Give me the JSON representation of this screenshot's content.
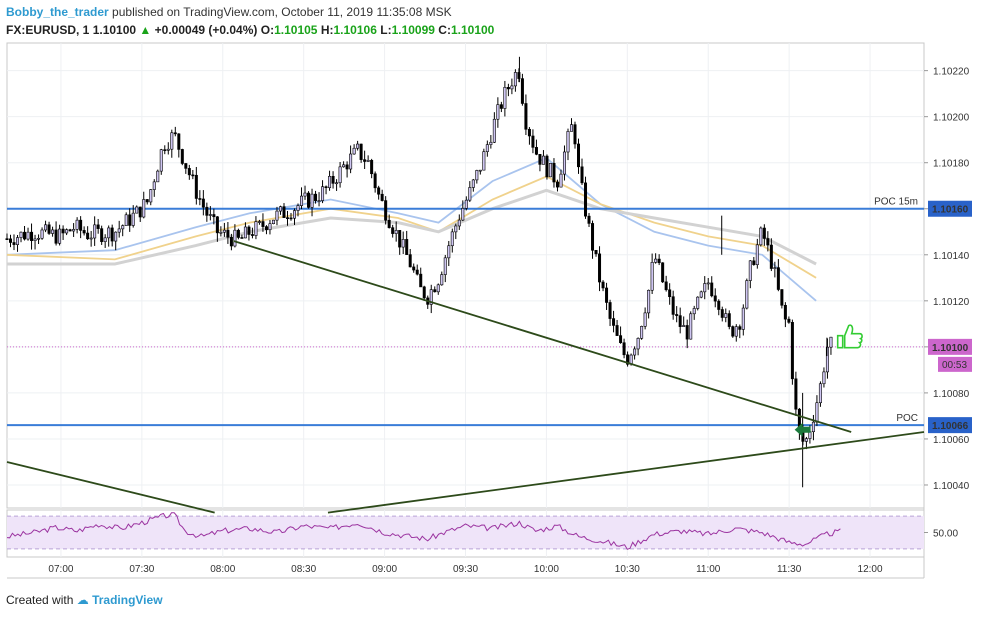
{
  "header": {
    "author": "Bobby_the_trader",
    "published_text": "published on TradingView.com, October 11, 2019 11:35:08 MSK",
    "symbol": "FX:EURUSD, 1",
    "last": "1.10100",
    "change": "+0.00049 (+0.04%)",
    "ohlc": [
      {
        "label": "O:",
        "value": "1.10105"
      },
      {
        "label": "H:",
        "value": "1.10106"
      },
      {
        "label": "L:",
        "value": "1.10099"
      },
      {
        "label": "C:",
        "value": "1.10100"
      }
    ]
  },
  "footer": {
    "created_with": "Created with",
    "brand": "TradingView"
  },
  "colors": {
    "candle": "#000000",
    "candle_body": "#cfc6f2",
    "hline": "#3a7dd8",
    "trendline": "#2d4a1a",
    "ma_fast": "#a9c4ee",
    "ma_mid": "#f0d28c",
    "ma_slow": "#d2d2d2",
    "price_tag": "#cc66cc",
    "hline_tag": "#2962c9",
    "rsi": "#9b33a0",
    "rsi_band": "#efe4f9",
    "arrow": "#1b7a3c",
    "thumb": "#33cc33"
  },
  "chart_data": {
    "type": "candlestick",
    "symbol": "FX:EURUSD",
    "timeframe": "1",
    "y_ticks": [
      "1.10040",
      "1.10060",
      "1.10080",
      "1.10100",
      "1.10120",
      "1.10140",
      "1.10160",
      "1.10180",
      "1.10200",
      "1.10220"
    ],
    "ylim": [
      1.1003,
      1.10232
    ],
    "x_ticks": [
      "07:00",
      "07:30",
      "08:00",
      "08:30",
      "09:00",
      "09:30",
      "10:00",
      "10:30",
      "11:00",
      "11:30",
      "12:00"
    ],
    "xlim_minutes": [
      400,
      740
    ],
    "close_path": [
      [
        400,
        1.10147
      ],
      [
        410,
        1.1015
      ],
      [
        420,
        1.10148
      ],
      [
        425,
        1.10152
      ],
      [
        430,
        1.10149
      ],
      [
        440,
        1.1015
      ],
      [
        448,
        1.10158
      ],
      [
        452,
        1.10163
      ],
      [
        458,
        1.10188
      ],
      [
        462,
        1.10192
      ],
      [
        466,
        1.1018
      ],
      [
        470,
        1.10168
      ],
      [
        474,
        1.10158
      ],
      [
        478,
        1.1015
      ],
      [
        482,
        1.10148
      ],
      [
        486,
        1.10146
      ],
      [
        490,
        1.1015
      ],
      [
        494,
        1.10152
      ],
      [
        498,
        1.10156
      ],
      [
        502,
        1.10158
      ],
      [
        506,
        1.1016
      ],
      [
        510,
        1.10163
      ],
      [
        514,
        1.10165
      ],
      [
        518,
        1.10168
      ],
      [
        522,
        1.10174
      ],
      [
        526,
        1.1018
      ],
      [
        530,
        1.10185
      ],
      [
        534,
        1.1018
      ],
      [
        538,
        1.10165
      ],
      [
        542,
        1.10155
      ],
      [
        546,
        1.10145
      ],
      [
        550,
        1.10135
      ],
      [
        553,
        1.10125
      ],
      [
        556,
        1.10122
      ],
      [
        560,
        1.1013
      ],
      [
        564,
        1.10145
      ],
      [
        568,
        1.10158
      ],
      [
        572,
        1.10168
      ],
      [
        576,
        1.1018
      ],
      [
        580,
        1.10195
      ],
      [
        584,
        1.10208
      ],
      [
        588,
        1.10218
      ],
      [
        590,
        1.1022
      ],
      [
        592,
        1.102
      ],
      [
        596,
        1.10185
      ],
      [
        600,
        1.10178
      ],
      [
        604,
        1.10172
      ],
      [
        608,
        1.1019
      ],
      [
        610,
        1.10198
      ],
      [
        612,
        1.10175
      ],
      [
        616,
        1.1015
      ],
      [
        620,
        1.10128
      ],
      [
        624,
        1.1011
      ],
      [
        628,
        1.10098
      ],
      [
        630,
        1.10095
      ],
      [
        634,
        1.10105
      ],
      [
        638,
        1.10125
      ],
      [
        640,
        1.1014
      ],
      [
        644,
        1.10125
      ],
      [
        648,
        1.10112
      ],
      [
        652,
        1.10106
      ],
      [
        656,
        1.10118
      ],
      [
        660,
        1.10128
      ],
      [
        664,
        1.1012
      ],
      [
        668,
        1.10106
      ],
      [
        672,
        1.10112
      ],
      [
        676,
        1.10136
      ],
      [
        680,
        1.1015
      ],
      [
        684,
        1.10135
      ],
      [
        688,
        1.10112
      ],
      [
        690,
        1.1011
      ],
      [
        692,
        1.10075
      ],
      [
        694,
        1.1006
      ],
      [
        696,
        1.10058
      ],
      [
        698,
        1.10066
      ],
      [
        700,
        1.10075
      ],
      [
        702,
        1.10085
      ],
      [
        704,
        1.101
      ],
      [
        706,
        1.10101
      ]
    ],
    "high_low": [
      [
        590,
        1.10226,
        1.10215
      ],
      [
        665,
        1.10157,
        1.1014
      ],
      [
        704,
        1.10104,
        1.10096
      ],
      [
        695,
        1.1008,
        1.10039
      ]
    ],
    "moving_averages": [
      {
        "color_key": "ma_fast",
        "points": [
          [
            400,
            1.1014
          ],
          [
            440,
            1.10142
          ],
          [
            470,
            1.10152
          ],
          [
            490,
            1.10158
          ],
          [
            520,
            1.10164
          ],
          [
            545,
            1.10158
          ],
          [
            560,
            1.10154
          ],
          [
            580,
            1.10172
          ],
          [
            600,
            1.10182
          ],
          [
            620,
            1.10162
          ],
          [
            640,
            1.1015
          ],
          [
            660,
            1.10144
          ],
          [
            680,
            1.1014
          ],
          [
            700,
            1.1012
          ]
        ]
      },
      {
        "color_key": "ma_mid",
        "points": [
          [
            400,
            1.1014
          ],
          [
            440,
            1.10138
          ],
          [
            470,
            1.10148
          ],
          [
            490,
            1.10154
          ],
          [
            520,
            1.1016
          ],
          [
            545,
            1.10156
          ],
          [
            560,
            1.1015
          ],
          [
            580,
            1.10164
          ],
          [
            600,
            1.10174
          ],
          [
            620,
            1.10162
          ],
          [
            640,
            1.10154
          ],
          [
            660,
            1.10148
          ],
          [
            680,
            1.10144
          ],
          [
            700,
            1.1013
          ]
        ]
      },
      {
        "color_key": "ma_slow",
        "points": [
          [
            400,
            1.10136
          ],
          [
            440,
            1.10136
          ],
          [
            470,
            1.10144
          ],
          [
            490,
            1.1015
          ],
          [
            520,
            1.10156
          ],
          [
            545,
            1.10154
          ],
          [
            560,
            1.1015
          ],
          [
            580,
            1.1016
          ],
          [
            600,
            1.10168
          ],
          [
            620,
            1.1016
          ],
          [
            640,
            1.10156
          ],
          [
            660,
            1.10152
          ],
          [
            680,
            1.10148
          ],
          [
            700,
            1.10136
          ]
        ]
      }
    ],
    "horizontal_lines": [
      {
        "price": 1.1016,
        "label": "POC 15m",
        "tag": "1.10160"
      },
      {
        "price": 1.10066,
        "label": "POC",
        "tag": "1.10066"
      }
    ],
    "current_price": {
      "price": 1.101,
      "tag": "1.10100",
      "countdown": "00:53"
    },
    "trendlines": [
      {
        "from": [
          484,
          1.10146
        ],
        "to": [
          713,
          1.10063
        ]
      },
      {
        "from": [
          400,
          1.1005
        ],
        "to": [
          477,
          1.10028
        ]
      },
      {
        "from": [
          519,
          1.10028
        ],
        "to": [
          740,
          1.10063
        ]
      }
    ],
    "rsi": {
      "ylim": [
        25,
        75
      ],
      "levels": [
        30,
        70
      ],
      "tick": "50.00",
      "points": [
        [
          400,
          45
        ],
        [
          410,
          50
        ],
        [
          418,
          56
        ],
        [
          426,
          52
        ],
        [
          434,
          60
        ],
        [
          442,
          55
        ],
        [
          450,
          62
        ],
        [
          458,
          70
        ],
        [
          462,
          72
        ],
        [
          466,
          52
        ],
        [
          472,
          45
        ],
        [
          480,
          52
        ],
        [
          490,
          55
        ],
        [
          500,
          50
        ],
        [
          510,
          58
        ],
        [
          520,
          55
        ],
        [
          530,
          62
        ],
        [
          540,
          50
        ],
        [
          550,
          45
        ],
        [
          556,
          42
        ],
        [
          562,
          50
        ],
        [
          570,
          58
        ],
        [
          580,
          55
        ],
        [
          590,
          62
        ],
        [
          596,
          52
        ],
        [
          604,
          58
        ],
        [
          612,
          45
        ],
        [
          620,
          40
        ],
        [
          630,
          32
        ],
        [
          640,
          48
        ],
        [
          650,
          52
        ],
        [
          660,
          48
        ],
        [
          670,
          55
        ],
        [
          680,
          50
        ],
        [
          690,
          38
        ],
        [
          696,
          36
        ],
        [
          704,
          48
        ],
        [
          710,
          52
        ]
      ]
    }
  }
}
